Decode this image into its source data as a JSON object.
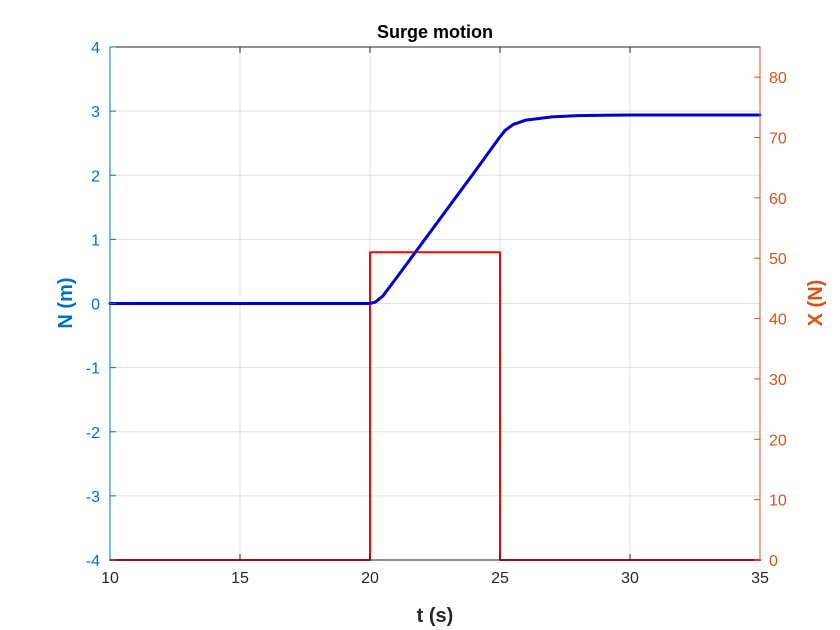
{
  "chart_data": {
    "type": "line",
    "title": "Surge motion",
    "xlabel": "t (s)",
    "ylabel_left": "N (m)",
    "ylabel_right": "X (N)",
    "xlim": [
      10,
      35
    ],
    "ylim_left": [
      -4,
      4
    ],
    "ylim_right": [
      0,
      85
    ],
    "x_ticks": [
      10,
      15,
      20,
      25,
      30,
      35
    ],
    "y_left_ticks": [
      -4,
      -3,
      -2,
      -1,
      0,
      1,
      2,
      3,
      4
    ],
    "y_right_ticks": [
      0,
      10,
      20,
      30,
      40,
      50,
      60,
      70,
      80
    ],
    "grid": true,
    "left_axis_color": "#0072BD",
    "right_axis_color": "#D95319",
    "series": [
      {
        "axis": "left",
        "color": "#0000CC",
        "x": [
          10,
          20,
          20.2,
          20.5,
          21,
          22,
          23,
          24,
          24.5,
          25,
          25.2,
          25.5,
          26,
          27,
          28,
          29,
          30,
          32,
          35
        ],
        "y": [
          0,
          0,
          0.02,
          0.12,
          0.39,
          0.94,
          1.49,
          2.04,
          2.32,
          2.6,
          2.7,
          2.79,
          2.86,
          2.91,
          2.93,
          2.935,
          2.94,
          2.94,
          2.94
        ]
      },
      {
        "axis": "right",
        "color": "#FF0000",
        "x": [
          10,
          20,
          20,
          25,
          25,
          35
        ],
        "y": [
          0,
          0,
          51,
          51,
          0,
          0
        ]
      }
    ]
  }
}
